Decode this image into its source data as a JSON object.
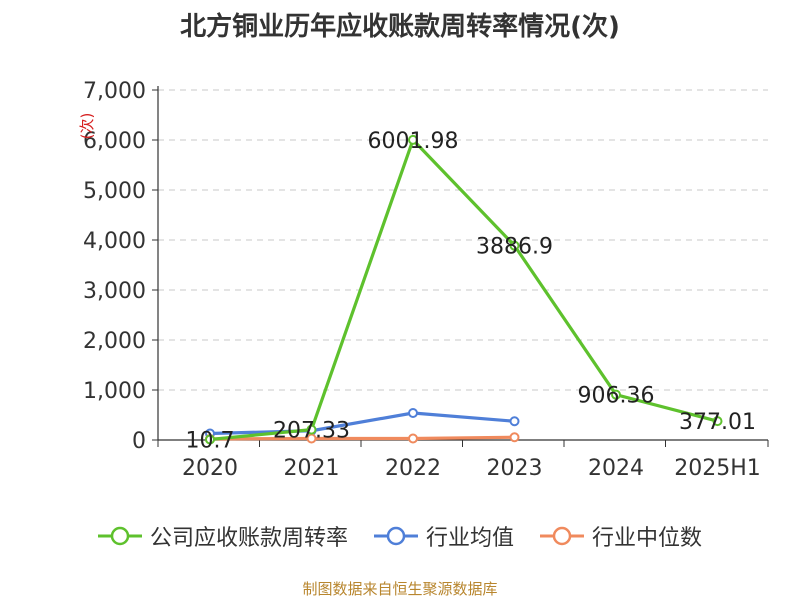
{
  "title": "北方铜业历年应收账款周转率情况(次)",
  "source": "制图数据来自恒生聚源数据库",
  "chart_data": {
    "type": "line",
    "title": "北方铜业历年应收账款周转率情况(次)",
    "ylabel": "(次)",
    "categories": [
      "2020",
      "2021",
      "2022",
      "2023",
      "2024",
      "2025H1"
    ],
    "y_ticks": [
      "0",
      "1,000",
      "2,000",
      "3,000",
      "4,000",
      "5,000",
      "6,000",
      "7,000"
    ],
    "ylim": [
      0,
      7000
    ],
    "grid": "horizontal dashed",
    "legend_position": "bottom",
    "series": [
      {
        "name": "公司应收账款周转率",
        "color": "#5ec12d",
        "values": [
          10.7,
          207.33,
          6001.98,
          3886.9,
          906.36,
          377.01
        ],
        "labels": [
          "10.7",
          "207.33",
          "6001.98",
          "3886.9",
          "906.36",
          "377.01"
        ]
      },
      {
        "name": "行业均值",
        "color": "#4f7fd8",
        "values": [
          130,
          185,
          540,
          375,
          null,
          null
        ]
      },
      {
        "name": "行业中位数",
        "color": "#f08a5d",
        "values": [
          20,
          30,
          30,
          55,
          null,
          null
        ]
      }
    ]
  }
}
